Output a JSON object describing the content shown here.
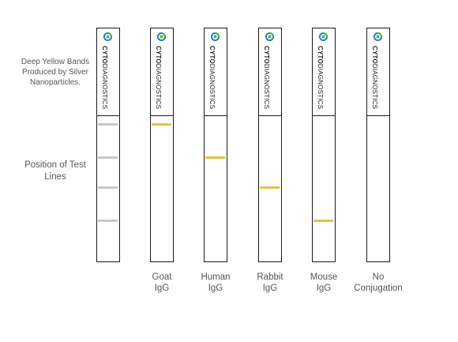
{
  "notes": {
    "yellow_bands": "Deep Yellow Bands Produced by Silver Nanoparticles.",
    "position": "Position of Test Lines"
  },
  "brand": {
    "bold": "CYTO",
    "regular": "DIAGNOSTICS"
  },
  "colors": {
    "band_yellow": "#e8c14a",
    "reference_gray": "#c8c8c8",
    "logo_blue": "#2a7fc1",
    "logo_green": "#4cb848"
  },
  "strips": [
    {
      "label_1": "",
      "label_2": "",
      "bands": [
        {
          "position": 0.41
        },
        {
          "position": 0.55
        },
        {
          "position": 0.68
        },
        {
          "position": 0.82
        }
      ],
      "band_type": "reference"
    },
    {
      "label_1": "Goat",
      "label_2": "IgG",
      "bands": [
        {
          "position": 0.41
        }
      ],
      "band_type": "test"
    },
    {
      "label_1": "Human",
      "label_2": "IgG",
      "bands": [
        {
          "position": 0.55
        }
      ],
      "band_type": "test"
    },
    {
      "label_1": "Rabbit",
      "label_2": "IgG",
      "bands": [
        {
          "position": 0.68
        }
      ],
      "band_type": "test"
    },
    {
      "label_1": "Mouse",
      "label_2": "IgG",
      "bands": [
        {
          "position": 0.82
        }
      ],
      "band_type": "test"
    },
    {
      "label_1": "No",
      "label_2": "Conjugation",
      "bands": [],
      "band_type": "test"
    }
  ]
}
